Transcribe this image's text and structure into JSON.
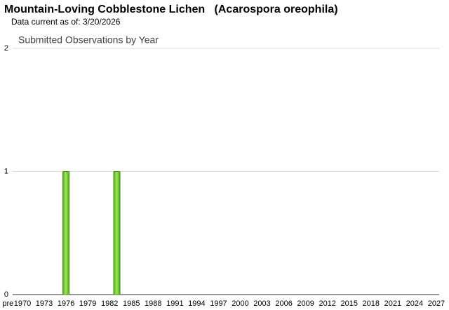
{
  "chart_data": {
    "type": "bar",
    "title": "Mountain-Loving Cobblestone Lichen   (Acarospora oreophila)",
    "subtitle": "Data current as of: 3/20/2026",
    "chart_title": "Submitted Observations by Year",
    "categories": [
      "pre",
      null,
      "1970",
      null,
      null,
      "1973",
      null,
      null,
      "1976",
      null,
      null,
      "1979",
      null,
      null,
      "1982",
      null,
      null,
      "1985",
      null,
      null,
      "1988",
      null,
      null,
      "1991",
      null,
      null,
      "1994",
      null,
      null,
      "1997",
      null,
      null,
      "2000",
      null,
      null,
      "2003",
      null,
      null,
      "2006",
      null,
      null,
      "2009",
      null,
      null,
      "2012",
      null,
      null,
      "2015",
      null,
      null,
      "2018",
      null,
      null,
      "2021",
      null,
      null,
      "2024",
      null,
      null,
      "2027"
    ],
    "values": [
      0,
      0,
      0,
      0,
      0,
      0,
      0,
      0,
      1,
      0,
      0,
      0,
      0,
      0,
      0,
      1,
      0,
      0,
      0,
      0,
      0,
      0,
      0,
      0,
      0,
      0,
      0,
      0,
      0,
      0,
      0,
      0,
      0,
      0,
      0,
      0,
      0,
      0,
      0,
      0,
      0,
      0,
      0,
      0,
      0,
      0,
      0,
      0,
      0,
      0,
      0,
      0,
      0,
      0,
      0,
      0,
      0,
      0,
      0,
      0
    ],
    "color": "#66cc22",
    "ylim": [
      0,
      2
    ],
    "yticks": [
      0,
      1,
      2
    ],
    "grid": true
  }
}
